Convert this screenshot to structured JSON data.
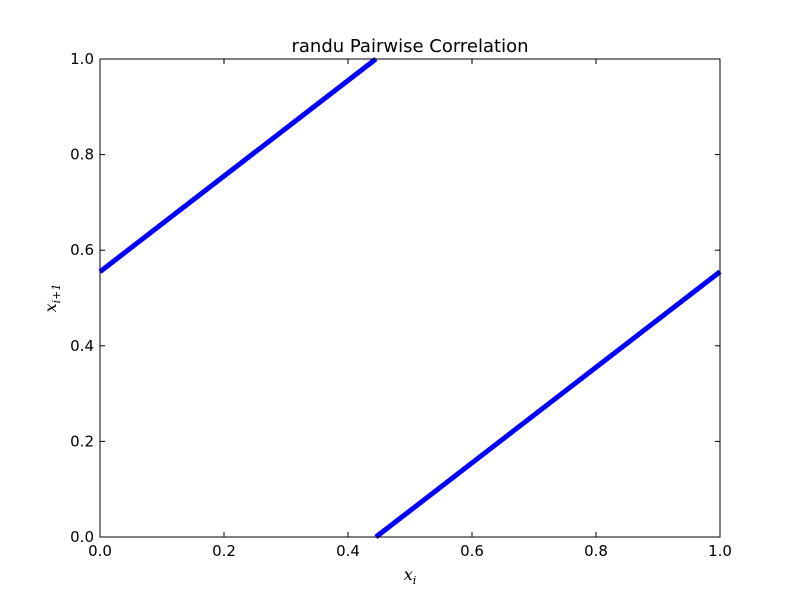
{
  "chart_data": {
    "type": "scatter",
    "title": "randu Pairwise Correlation",
    "xlim": [
      0.0,
      1.0
    ],
    "ylim": [
      0.0,
      1.0
    ],
    "xticks": [
      "0.0",
      "0.2",
      "0.4",
      "0.6",
      "0.8",
      "1.0"
    ],
    "yticks": [
      "0.0",
      "0.2",
      "0.4",
      "0.6",
      "0.8",
      "1.0"
    ],
    "xlabel": {
      "base": "x",
      "sub": "i"
    },
    "ylabel": {
      "base": "x",
      "sub": "i+1"
    },
    "grid": false,
    "color": "#0000ff",
    "series": [
      {
        "x": [
          0.0,
          0.445
        ],
        "y": [
          0.555,
          1.0
        ]
      },
      {
        "x": [
          0.445,
          1.0
        ],
        "y": [
          0.0,
          0.555
        ]
      }
    ]
  }
}
